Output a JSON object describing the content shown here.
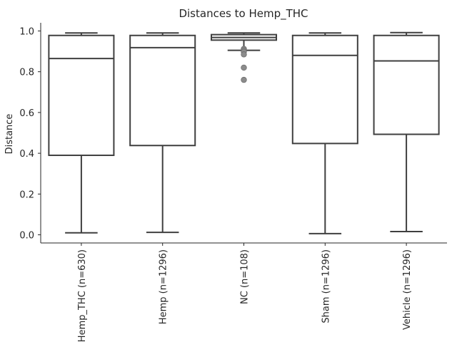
{
  "chart_data": {
    "type": "box",
    "title": "Distances to Hemp_THC",
    "xlabel": "",
    "ylabel": "Distance",
    "ylim": [
      -0.04,
      1.04
    ],
    "yticks": [
      0.0,
      0.2,
      0.4,
      0.6,
      0.8,
      1.0
    ],
    "ytick_labels": [
      "0.0",
      "0.2",
      "0.4",
      "0.6",
      "0.8",
      "1.0"
    ],
    "grid": false,
    "colors": {
      "box_fill": "#ffffff",
      "line": "#3f3f3f",
      "flier": "#8c8c8c",
      "axis": "#262626"
    },
    "categories": [
      "Hemp_THC (n=630)",
      "Hemp (n=1296)",
      "NC (n=108)",
      "Sham (n=1296)",
      "Vehicle (n=1296)"
    ],
    "boxes": [
      {
        "category": "Hemp_THC (n=630)",
        "whislo": 0.01,
        "q1": 0.39,
        "med": 0.865,
        "q3": 0.978,
        "whishi": 0.99,
        "fliers": []
      },
      {
        "category": "Hemp (n=1296)",
        "whislo": 0.012,
        "q1": 0.438,
        "med": 0.918,
        "q3": 0.978,
        "whishi": 0.99,
        "fliers": []
      },
      {
        "category": "NC (n=108)",
        "whislo": 0.905,
        "q1": 0.955,
        "med": 0.968,
        "q3": 0.982,
        "whishi": 0.99,
        "fliers": [
          0.912,
          0.905,
          0.898,
          0.885,
          0.82,
          0.76
        ]
      },
      {
        "category": "Sham (n=1296)",
        "whislo": 0.006,
        "q1": 0.448,
        "med": 0.88,
        "q3": 0.978,
        "whishi": 0.99,
        "fliers": []
      },
      {
        "category": "Vehicle (n=1296)",
        "whislo": 0.016,
        "q1": 0.493,
        "med": 0.853,
        "q3": 0.978,
        "whishi": 0.992,
        "fliers": []
      }
    ]
  }
}
